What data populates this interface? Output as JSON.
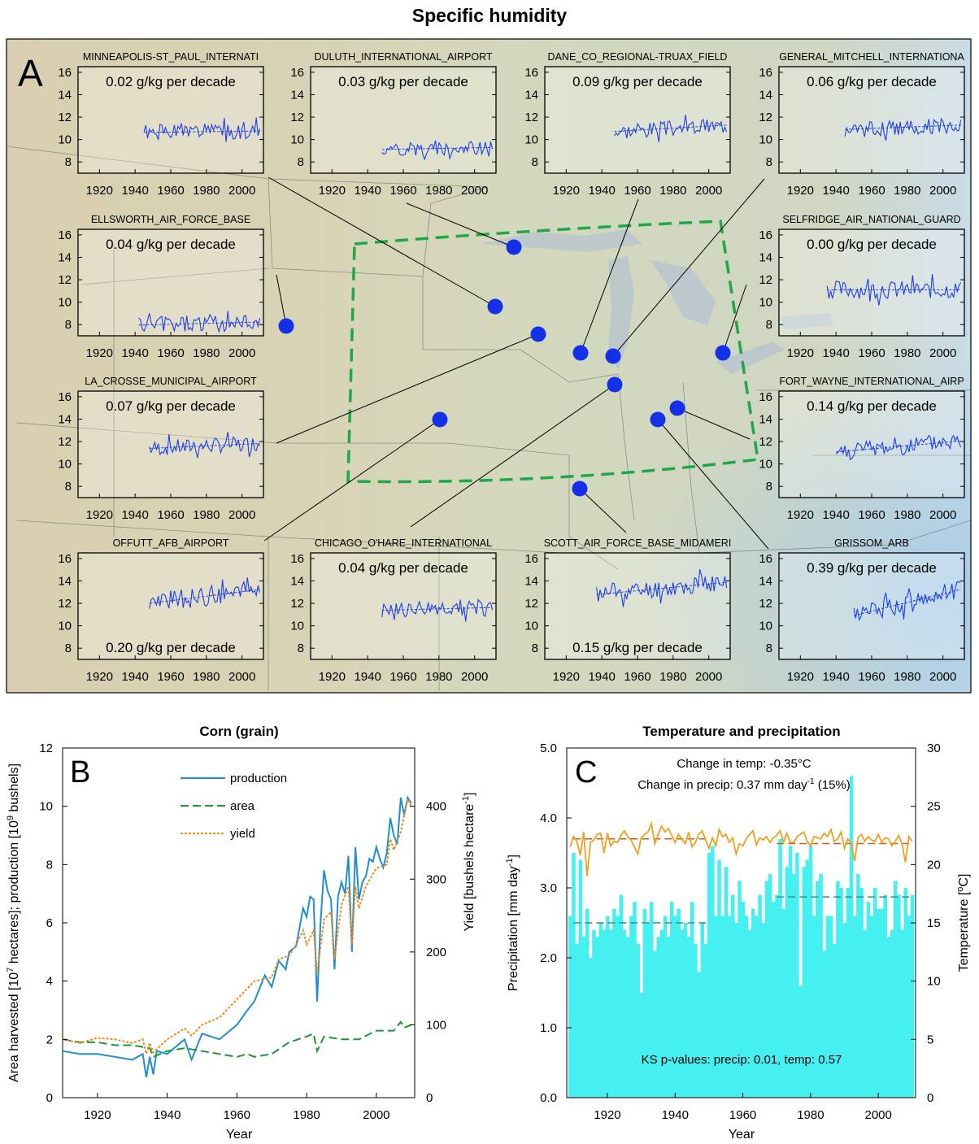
{
  "figure_title": "Specific humidity",
  "panel_labels": {
    "A": "A",
    "B": "B",
    "C": "C"
  },
  "colors": {
    "station_line": "#1f3fe6",
    "station_dot": "#1430e8",
    "region_box": "#1fa84a",
    "production": "#1f8fd0",
    "area": "#1a9a30",
    "yield": "#f08a1e",
    "precip_bar": "#46f0f0",
    "temp_line": "#f0a020",
    "mean_line_precip": "#3a8a8a",
    "mean_line_temp": "#d05a10"
  },
  "chart_data": [
    {
      "type": "line",
      "panel": "A",
      "description_units": "g/kg",
      "x_ticks": [
        "1920",
        "1940",
        "1960",
        "1980",
        "2000"
      ],
      "y_ticks": [
        "16",
        "14",
        "12",
        "10",
        "8"
      ],
      "xlim": [
        1908,
        2012
      ],
      "ylim": [
        7,
        16.5
      ],
      "stations": [
        {
          "name": "MINNEAPOLIS-ST_PAUL_INTERNATI",
          "trend": "0.02 g/kg per decade",
          "trend_pos": "top",
          "start": 1945,
          "end": 2010,
          "mean": 10.7,
          "slope": 0.002,
          "amp": 0.7,
          "seed": 1
        },
        {
          "name": "DULUTH_INTERNATIONAL_AIRPORT",
          "trend": "0.03 g/kg per decade",
          "trend_pos": "top",
          "start": 1948,
          "end": 2010,
          "mean": 9.2,
          "slope": 0.003,
          "amp": 0.6,
          "seed": 2
        },
        {
          "name": "DANE_CO_REGIONAL-TRUAX_FIELD",
          "trend": "0.09 g/kg per decade",
          "trend_pos": "top",
          "start": 1947,
          "end": 2010,
          "mean": 11.0,
          "slope": 0.009,
          "amp": 0.7,
          "seed": 3
        },
        {
          "name": "GENERAL_MITCHELL_INTERNATIONA",
          "trend": "0.06 g/kg per decade",
          "trend_pos": "top",
          "start": 1945,
          "end": 2010,
          "mean": 11.1,
          "slope": 0.006,
          "amp": 0.7,
          "seed": 4
        },
        {
          "name": "ELLSWORTH_AIR_FORCE_BASE",
          "trend": "0.04 g/kg per decade",
          "trend_pos": "top",
          "start": 1942,
          "end": 2010,
          "mean": 8.1,
          "slope": 0.004,
          "amp": 0.8,
          "seed": 5
        },
        {
          "name": "SELFRIDGE_AIR_NATIONAL_GUARD",
          "trend": "0.00 g/kg per decade",
          "trend_pos": "top",
          "start": 1935,
          "end": 2010,
          "mean": 11.1,
          "slope": 0.0,
          "amp": 0.8,
          "seed": 6
        },
        {
          "name": "LA_CROSSE_MUNICIPAL_AIRPORT",
          "trend": "0.07 g/kg per decade",
          "trend_pos": "top",
          "start": 1948,
          "end": 2010,
          "mean": 11.6,
          "slope": 0.007,
          "amp": 0.7,
          "seed": 7
        },
        {
          "name": "FORT_WAYNE_INTERNATIONAL_AIRP",
          "trend": "0.14 g/kg per decade",
          "trend_pos": "top",
          "start": 1940,
          "end": 2010,
          "mean": 11.6,
          "slope": 0.014,
          "amp": 0.8,
          "seed": 8
        },
        {
          "name": "OFFUTT_AFB_AIRPORT",
          "trend": "0.20 g/kg per decade",
          "trend_pos": "bottom",
          "start": 1948,
          "end": 2010,
          "mean": 12.6,
          "slope": 0.02,
          "amp": 0.9,
          "seed": 9
        },
        {
          "name": "CHICAGO_O'HARE_INTERNATIONAL",
          "trend": "0.04 g/kg per decade",
          "trend_pos": "top",
          "start": 1948,
          "end": 2010,
          "mean": 11.5,
          "slope": 0.004,
          "amp": 0.7,
          "seed": 10
        },
        {
          "name": "SCOTT_AIR_FORCE_BASE_MIDAMERI",
          "trend": "0.15 g/kg per decade",
          "trend_pos": "bottom",
          "start": 1937,
          "end": 2010,
          "mean": 13.4,
          "slope": 0.015,
          "amp": 0.8,
          "seed": 11
        },
        {
          "name": "GRISSOM_ARB",
          "trend": "0.39 g/kg per decade",
          "trend_pos": "top",
          "start": 1950,
          "end": 2010,
          "mean": 12.0,
          "slope": 0.039,
          "amp": 0.8,
          "seed": 12
        }
      ]
    },
    {
      "type": "line",
      "panel": "B",
      "title": "Corn (grain)",
      "xlabel": "Year",
      "ylabel_left": "Area harvested [10⁷ hectares]; production [10⁹ bushels]",
      "ylabel_right": "Yield [bushels hectare⁻¹]",
      "xlim": [
        1910,
        2011
      ],
      "ylim": [
        0,
        12
      ],
      "ylim_right": [
        0,
        480
      ],
      "x_ticks": [
        "1920",
        "1940",
        "1960",
        "1980",
        "2000"
      ],
      "y_ticks": [
        "0",
        "2",
        "4",
        "6",
        "8",
        "10",
        "12"
      ],
      "y_ticks_right": [
        "0",
        "100",
        "200",
        "300",
        "400"
      ],
      "legend": [
        "production",
        "area",
        "yield"
      ],
      "legend_position": "top-center",
      "series": [
        {
          "name": "production",
          "x": [
            1910,
            1915,
            1920,
            1925,
            1930,
            1933,
            1934,
            1935,
            1936,
            1937,
            1940,
            1945,
            1947,
            1950,
            1955,
            1960,
            1963,
            1965,
            1968,
            1970,
            1972,
            1974,
            1975,
            1977,
            1979,
            1980,
            1981,
            1982,
            1983,
            1984,
            1985,
            1986,
            1987,
            1988,
            1989,
            1990,
            1991,
            1992,
            1993,
            1994,
            1995,
            1996,
            1997,
            1998,
            1999,
            2000,
            2001,
            2002,
            2003,
            2004,
            2005,
            2006,
            2007,
            2008,
            2009,
            2010
          ],
          "values": [
            1.6,
            1.5,
            1.5,
            1.4,
            1.3,
            1.5,
            0.7,
            1.4,
            0.8,
            1.6,
            1.5,
            2.0,
            1.3,
            2.2,
            2.0,
            2.5,
            3.0,
            3.3,
            4.2,
            3.8,
            4.7,
            4.4,
            5.0,
            5.2,
            6.5,
            6.2,
            6.9,
            6.8,
            3.3,
            6.0,
            7.8,
            7.1,
            6.8,
            4.4,
            6.9,
            7.4,
            7.0,
            8.3,
            5.0,
            8.6,
            6.8,
            7.4,
            7.6,
            8.2,
            8.1,
            8.6,
            8.2,
            7.9,
            8.4,
            9.6,
            9.0,
            8.7,
            10.3,
            9.7,
            10.3,
            10.1
          ]
        },
        {
          "name": "area",
          "x": [
            1910,
            1915,
            1920,
            1925,
            1930,
            1935,
            1936,
            1940,
            1945,
            1950,
            1955,
            1960,
            1963,
            1965,
            1970,
            1975,
            1980,
            1982,
            1983,
            1985,
            1990,
            1995,
            2000,
            2005,
            2007,
            2008,
            2010
          ],
          "values": [
            2.0,
            1.9,
            1.9,
            1.8,
            1.8,
            1.7,
            1.4,
            1.6,
            1.7,
            1.6,
            1.5,
            1.4,
            1.5,
            1.4,
            1.5,
            1.9,
            2.1,
            2.2,
            1.6,
            2.1,
            2.0,
            2.0,
            2.3,
            2.3,
            2.6,
            2.4,
            2.5
          ]
        },
        {
          "name": "yield",
          "x": [
            1910,
            1915,
            1920,
            1925,
            1930,
            1933,
            1934,
            1935,
            1936,
            1940,
            1945,
            1947,
            1950,
            1955,
            1960,
            1963,
            1965,
            1970,
            1972,
            1975,
            1977,
            1979,
            1980,
            1982,
            1983,
            1985,
            1987,
            1988,
            1990,
            1992,
            1993,
            1994,
            1995,
            1997,
            2000,
            2003,
            2004,
            2005,
            2007,
            2009,
            2010
          ],
          "values": [
            80,
            75,
            82,
            80,
            75,
            80,
            60,
            75,
            62,
            80,
            95,
            85,
            100,
            110,
            135,
            150,
            160,
            165,
            190,
            195,
            210,
            230,
            210,
            230,
            170,
            245,
            255,
            190,
            265,
            290,
            210,
            290,
            260,
            290,
            315,
            320,
            355,
            340,
            365,
            410,
            400
          ]
        }
      ]
    },
    {
      "type": "bar",
      "panel": "C",
      "title": "Temperature and precipitation",
      "xlabel": "Year",
      "ylabel_left": "Precipitation [mm day⁻¹]",
      "ylabel_right": "Temperature [°C]",
      "xlim": [
        1908,
        2011
      ],
      "ylim": [
        0,
        5
      ],
      "ylim_right": [
        0,
        30
      ],
      "x_ticks": [
        "1920",
        "1940",
        "1960",
        "1980",
        "2000"
      ],
      "y_ticks": [
        "0.0",
        "1.0",
        "2.0",
        "3.0",
        "4.0",
        "5.0"
      ],
      "y_ticks_right": [
        "0",
        "5",
        "10",
        "15",
        "20",
        "25",
        "30"
      ],
      "annotations": {
        "temp_change": "Change in temp: -0.35°C",
        "precip_change_prefix": "Change in precip: 0.37 mm day",
        "precip_change_exp": "-1",
        "precip_change_suffix": " (15%)",
        "ks": "KS p-values: precip: 0.01, temp: 0.57"
      },
      "precip_mean_early": 2.5,
      "precip_mean_late": 2.87,
      "temp_mean_early": 22.2,
      "temp_mean_late": 21.8,
      "years_start": 1909,
      "precip": [
        2.6,
        3.5,
        2.2,
        3.4,
        2.3,
        2.7,
        2.0,
        2.4,
        2.3,
        2.5,
        2.4,
        2.6,
        2.4,
        2.7,
        2.6,
        2.9,
        2.4,
        2.3,
        2.6,
        2.8,
        2.2,
        1.5,
        2.7,
        2.5,
        2.8,
        2.1,
        2.3,
        2.4,
        2.6,
        2.3,
        2.8,
        2.6,
        2.7,
        2.4,
        2.5,
        2.3,
        2.8,
        2.2,
        1.8,
        2.5,
        2.2,
        3.5,
        3.6,
        2.6,
        3.4,
        2.6,
        3.3,
        2.6,
        2.9,
        2.5,
        3.1,
        2.8,
        2.6,
        2.4,
        2.7,
        2.6,
        2.9,
        2.5,
        3.1,
        3.2,
        2.8,
        2.9,
        3.7,
        2.7,
        3.3,
        3.6,
        3.2,
        3.5,
        1.6,
        3.3,
        3.4,
        3.6,
        2.6,
        3.1,
        3.2,
        2.1,
        2.6,
        2.6,
        2.2,
        3.1,
        3.0,
        2.5,
        3.0,
        4.6,
        2.6,
        3.2,
        3.0,
        2.4,
        2.8,
        2.6,
        3.0,
        2.7,
        2.7,
        2.9,
        2.3,
        2.4,
        3.1,
        2.9,
        2.4,
        3.0,
        2.6,
        2.9
      ],
      "temp": [
        21.5,
        22.4,
        22.0,
        20.8,
        22.8,
        19.0,
        21.9,
        22.1,
        22.6,
        22.7,
        21.0,
        22.7,
        21.6,
        22.0,
        21.9,
        22.5,
        22.9,
        22.4,
        22.1,
        21.5,
        20.9,
        22.3,
        22.6,
        22.8,
        23.5,
        21.8,
        22.6,
        23.3,
        22.8,
        23.1,
        22.5,
        21.9,
        22.6,
        22.2,
        21.8,
        22.8,
        21.5,
        21.9,
        22.6,
        22.9,
        22.1,
        21.4,
        22.3,
        21.6,
        23.0,
        22.4,
        22.6,
        21.9,
        22.3,
        20.9,
        21.8,
        21.6,
        22.2,
        22.6,
        22.9,
        21.7,
        22.3,
        22.1,
        22.4,
        21.9,
        22.3,
        22.5,
        22.9,
        21.9,
        22.7,
        21.9,
        21.9,
        22.4,
        22.6,
        22.8,
        22.0,
        21.6,
        22.4,
        22.3,
        22.2,
        22.7,
        22.4,
        23.0,
        22.0,
        22.2,
        22.8,
        21.4,
        22.2,
        21.8,
        20.3,
        22.3,
        22.6,
        22.0,
        22.4,
        22.1,
        22.0,
        22.6,
        21.9,
        22.3,
        22.2,
        21.6,
        22.0,
        22.5,
        21.8,
        20.2,
        22.4,
        22.0
      ]
    }
  ]
}
